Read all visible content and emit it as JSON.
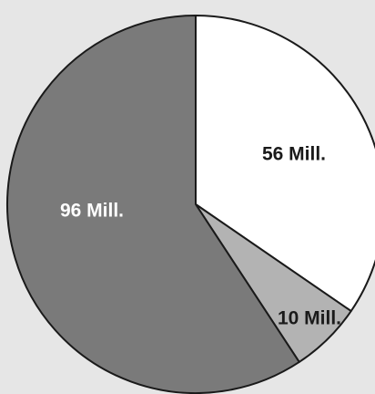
{
  "chart_data": {
    "type": "pie",
    "title": "",
    "start": "12 o'clock",
    "direction": "clockwise",
    "slices": [
      {
        "label": "56 Mill.",
        "value": 56,
        "color": "#ffffff",
        "label_color": "#1a1a1a"
      },
      {
        "label": "10 Mill.",
        "value": 10,
        "color": "#b3b3b3",
        "label_color": "#1a1a1a"
      },
      {
        "label": "96 Mill.",
        "value": 96,
        "color": "#7a7a7a",
        "label_color": "#ffffff"
      }
    ]
  },
  "colors": {
    "background": "#e6e6e6",
    "outline": "#1a1a1a"
  }
}
